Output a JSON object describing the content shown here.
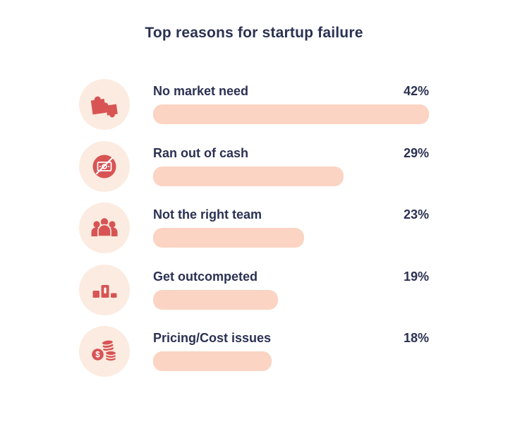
{
  "title": "Top reasons for startup failure",
  "colors": {
    "page_bg": "#ffffff",
    "text_navy": "#2b3152",
    "accent_red": "#d85454",
    "circle_bg": "#fcebe0",
    "bar_fill": "#fbd4c3"
  },
  "rows": [
    {
      "label": "No market need",
      "value": "42%",
      "icon": "puzzle-icon"
    },
    {
      "label": "Ran out of cash",
      "value": "29%",
      "icon": "no-cash-icon"
    },
    {
      "label": "Not the right team",
      "value": "23%",
      "icon": "team-icon"
    },
    {
      "label": "Get outcompeted",
      "value": "19%",
      "icon": "podium-icon"
    },
    {
      "label": "Pricing/Cost issues",
      "value": "18%",
      "icon": "coins-icon"
    }
  ],
  "chart_data": {
    "type": "bar",
    "orientation": "horizontal",
    "title": "Top reasons for startup failure",
    "categories": [
      "No market need",
      "Ran out of cash",
      "Not the right team",
      "Get outcompeted",
      "Pricing/Cost issues"
    ],
    "values": [
      42,
      29,
      23,
      19,
      18
    ],
    "value_suffix": "%",
    "xlim": [
      0,
      42
    ],
    "grid": false,
    "legend": false
  }
}
